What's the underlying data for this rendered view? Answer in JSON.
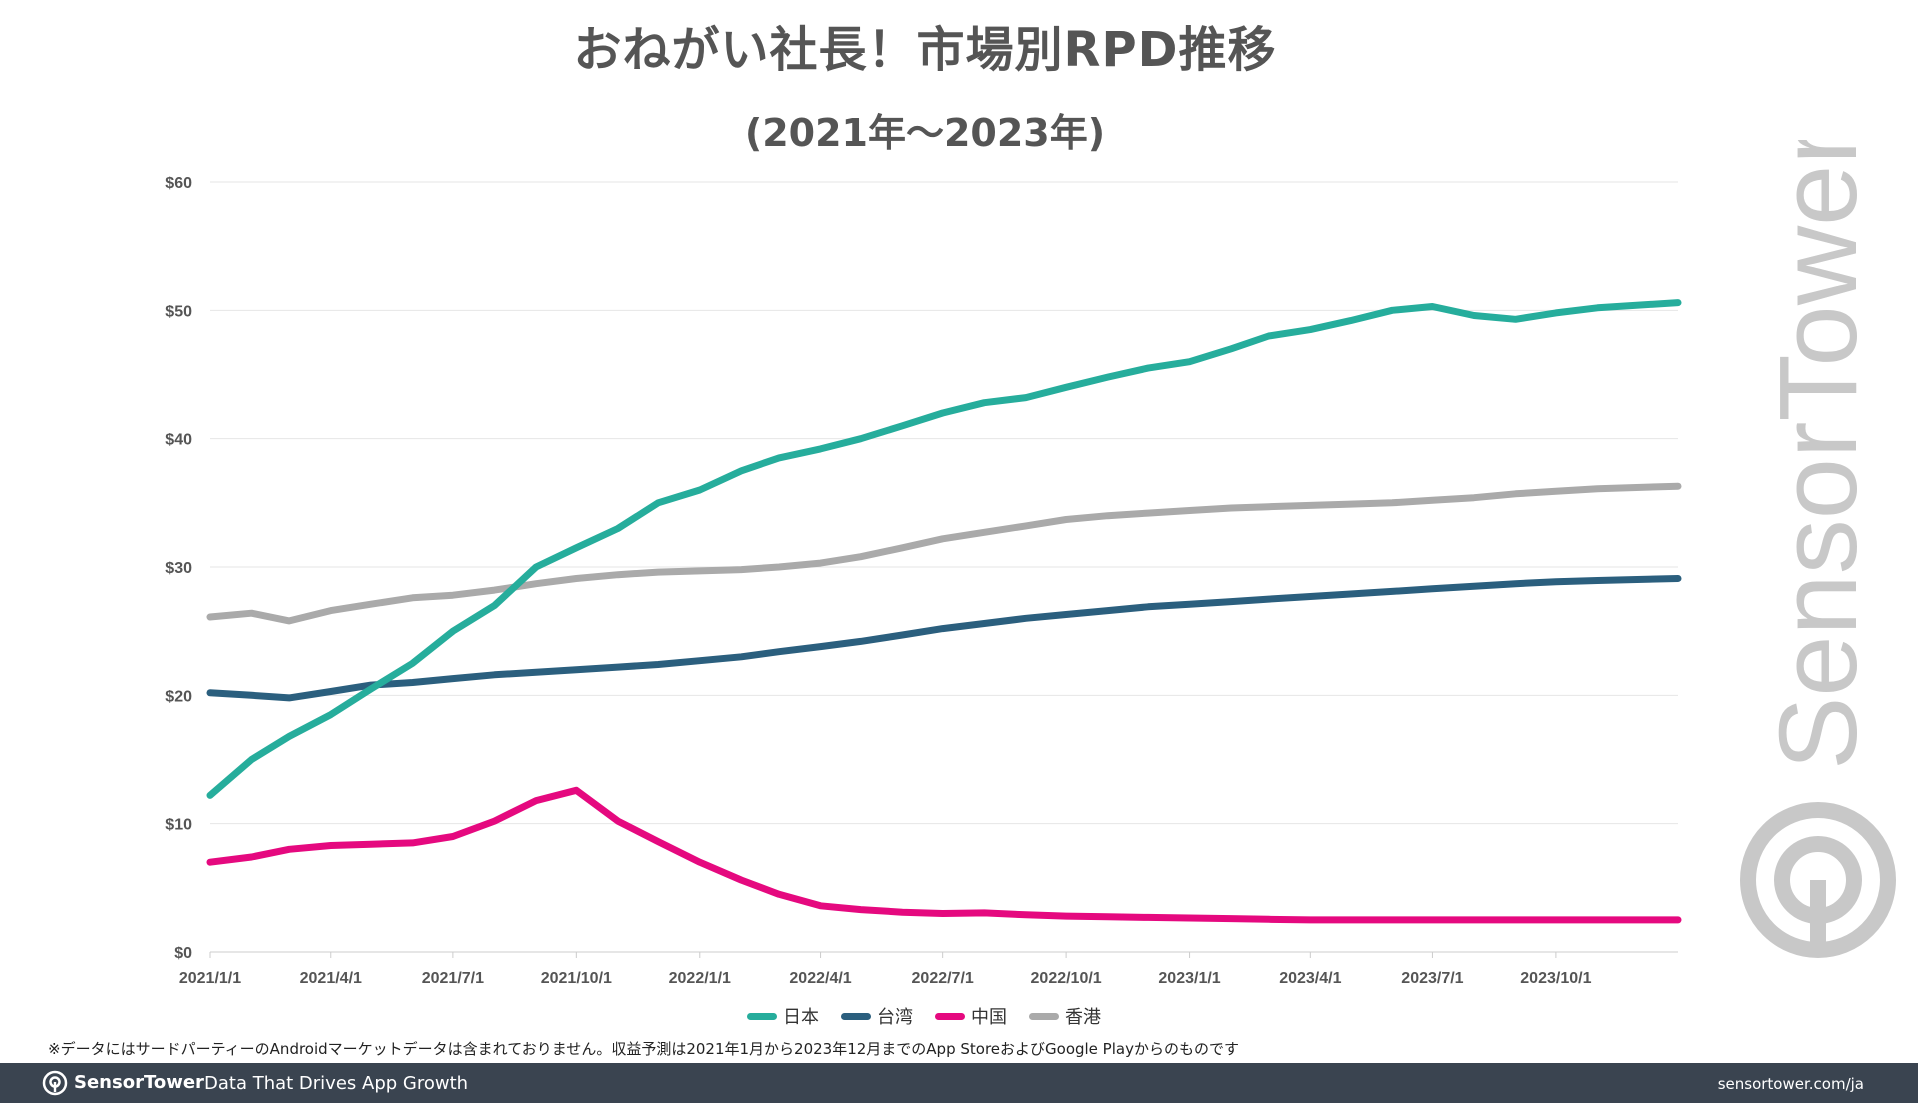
{
  "title": "おねがい社長！市場別RPD推移",
  "subtitle": "(2021年〜2023年)",
  "footnote": "※データにはサードパーティーのAndroidマーケットデータは含まれておりません。収益予測は2021年1月から2023年12月までのApp StoreおよびGoogle Playからのものです",
  "watermark_text": "SensorTower",
  "footer": {
    "brand": "SensorTower",
    "tagline": "Data That Drives App Growth",
    "url": "sensortower.com/ja"
  },
  "colors": {
    "日本": "#26ad9c",
    "台湾": "#2b5f7e",
    "中国": "#e5097f",
    "香港": "#aaaaaa",
    "footer_bg": "#3a4450",
    "grid": "#e6e6e6"
  },
  "chart_data": {
    "type": "line",
    "title": "おねがい社長！市場別RPD推移",
    "subtitle": "(2021年〜2023年)",
    "xlabel": "",
    "ylabel": "",
    "ylim": [
      0,
      60
    ],
    "y_ticks": [
      "$0",
      "$10",
      "$20",
      "$30",
      "$40",
      "$50",
      "$60"
    ],
    "x_ticks": [
      "2021/1/1",
      "2021/4/1",
      "2021/7/1",
      "2021/10/1",
      "2022/1/1",
      "2022/4/1",
      "2022/7/1",
      "2022/10/1",
      "2023/1/1",
      "2023/4/1",
      "2023/7/1",
      "2023/10/1"
    ],
    "grid": true,
    "legend_position": "bottom",
    "x": [
      "2021/1/1",
      "2021/2/1",
      "2021/3/1",
      "2021/4/1",
      "2021/5/1",
      "2021/6/1",
      "2021/7/1",
      "2021/8/1",
      "2021/9/1",
      "2021/10/1",
      "2021/11/1",
      "2021/12/1",
      "2022/1/1",
      "2022/2/1",
      "2022/3/1",
      "2022/4/1",
      "2022/5/1",
      "2022/6/1",
      "2022/7/1",
      "2022/8/1",
      "2022/9/1",
      "2022/10/1",
      "2022/11/1",
      "2022/12/1",
      "2023/1/1",
      "2023/2/1",
      "2023/3/1",
      "2023/4/1",
      "2023/5/1",
      "2023/6/1",
      "2023/7/1",
      "2023/8/1",
      "2023/9/1",
      "2023/10/1",
      "2023/11/1",
      "2023/12/31"
    ],
    "series": [
      {
        "name": "日本",
        "values": [
          12.2,
          15.0,
          16.8,
          18.5,
          20.5,
          22.5,
          25.0,
          27.0,
          30.0,
          31.5,
          33.0,
          35.0,
          36.0,
          37.5,
          38.5,
          39.2,
          40.0,
          41.0,
          42.0,
          42.8,
          43.2,
          44.0,
          44.8,
          45.5,
          46.0,
          47.0,
          48.0,
          48.5,
          49.2,
          50.0,
          50.3,
          49.6,
          49.3,
          49.8,
          50.2,
          50.6
        ]
      },
      {
        "name": "台湾",
        "values": [
          20.2,
          20.0,
          19.8,
          20.3,
          20.8,
          21.0,
          21.3,
          21.6,
          21.8,
          22.0,
          22.2,
          22.4,
          22.7,
          23.0,
          23.4,
          23.8,
          24.2,
          24.7,
          25.2,
          25.6,
          26.0,
          26.3,
          26.6,
          26.9,
          27.1,
          27.3,
          27.5,
          27.7,
          27.9,
          28.1,
          28.3,
          28.5,
          28.7,
          28.85,
          28.95,
          29.1
        ]
      },
      {
        "name": "中国",
        "values": [
          7.0,
          7.4,
          8.0,
          8.3,
          8.4,
          8.5,
          9.0,
          10.2,
          11.8,
          12.6,
          10.2,
          8.6,
          7.0,
          5.6,
          4.5,
          3.6,
          3.3,
          3.1,
          3.0,
          3.05,
          2.9,
          2.8,
          2.75,
          2.7,
          2.65,
          2.6,
          2.55,
          2.5,
          2.5,
          2.5,
          2.5,
          2.5,
          2.5,
          2.5,
          2.5,
          2.5
        ]
      },
      {
        "name": "香港",
        "values": [
          26.1,
          26.4,
          25.8,
          26.6,
          27.1,
          27.6,
          27.8,
          28.2,
          28.7,
          29.1,
          29.4,
          29.6,
          29.7,
          29.8,
          30.0,
          30.3,
          30.8,
          31.5,
          32.2,
          32.7,
          33.2,
          33.7,
          34.0,
          34.2,
          34.4,
          34.6,
          34.7,
          34.8,
          34.9,
          35.0,
          35.2,
          35.4,
          35.7,
          35.9,
          36.1,
          36.3
        ]
      }
    ]
  }
}
